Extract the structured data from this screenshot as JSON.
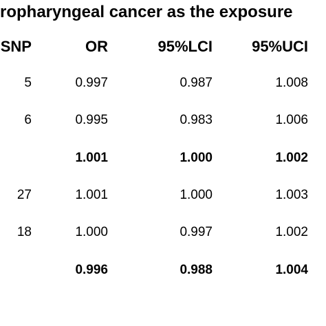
{
  "title": "ropharyngeal cancer as the exposure",
  "headers": [
    "SNP",
    "OR",
    "95%LCI",
    "95%UCI"
  ],
  "rows": [
    {
      "snp": "5",
      "or": "0.997",
      "lci": "0.987",
      "uci": "1.008",
      "bold": false
    },
    {
      "snp": "6",
      "or": "0.995",
      "lci": "0.983",
      "uci": "1.006",
      "bold": false
    },
    {
      "snp": "",
      "or": "1.001",
      "lci": "1.000",
      "uci": "1.002",
      "bold": true
    },
    {
      "snp": "27",
      "or": "1.001",
      "lci": "1.000",
      "uci": "1.003",
      "bold": false
    },
    {
      "snp": "18",
      "or": "1.000",
      "lci": "0.997",
      "uci": "1.002",
      "bold": false
    },
    {
      "snp": "",
      "or": "0.996",
      "lci": "0.988",
      "uci": "1.004",
      "bold": true
    }
  ]
}
